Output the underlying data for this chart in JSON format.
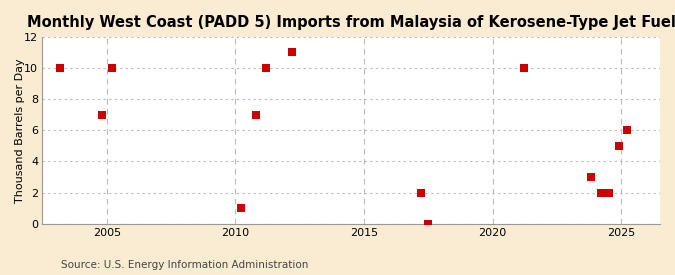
{
  "title": "Monthly West Coast (PADD 5) Imports from Malaysia of Kerosene-Type Jet Fuel",
  "ylabel": "Thousand Barrels per Day",
  "source": "Source: U.S. Energy Information Administration",
  "fig_background": "#faecd2",
  "plot_background": "#ffffff",
  "scatter_color": "#cc0000",
  "grid_color": "#bbbbbb",
  "spine_color": "#999999",
  "xlim": [
    2002.5,
    2026.5
  ],
  "ylim": [
    0,
    12
  ],
  "yticks": [
    0,
    2,
    4,
    6,
    8,
    10,
    12
  ],
  "xticks": [
    2005,
    2010,
    2015,
    2020,
    2025
  ],
  "data_x": [
    2003.2,
    2004.8,
    2005.2,
    2010.2,
    2010.8,
    2011.2,
    2012.2,
    2017.2,
    2017.5,
    2021.2,
    2023.8,
    2024.2,
    2024.5,
    2024.9,
    2025.2
  ],
  "data_y": [
    10,
    7,
    10,
    1,
    7,
    10,
    11,
    2,
    0,
    10,
    3,
    2,
    2,
    5,
    6
  ],
  "marker_size": 28,
  "title_fontsize": 10.5,
  "label_fontsize": 8,
  "tick_fontsize": 8,
  "source_fontsize": 7.5
}
